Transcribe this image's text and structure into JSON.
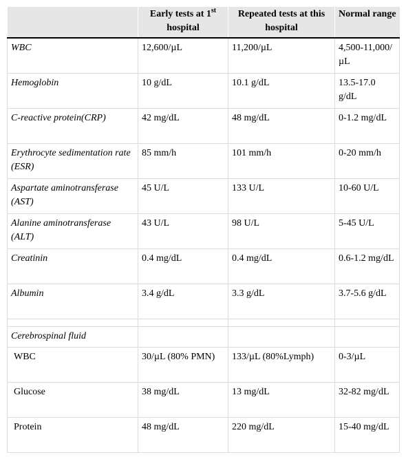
{
  "header": {
    "col1": "",
    "col2_text": "Early tests at 1",
    "col2_sup": "st",
    "col2_text2": "hospital",
    "col3": "Repeated tests at this hospital",
    "col4": "Normal range"
  },
  "blood_rows": [
    {
      "name": "WBC",
      "early": "12,600/µL",
      "repeated": "11,200/µL",
      "normal": "4,500-11,000/µL"
    },
    {
      "name": "Hemoglobin",
      "early": "10 g/dL",
      "repeated": "10.1 g/dL",
      "normal": "13.5-17.0 g/dL"
    },
    {
      "name": "C-reactive protein(CRP)",
      "early": "42 mg/dL",
      "repeated": "48 mg/dL",
      "normal": "0-1.2 mg/dL"
    },
    {
      "name": "Erythrocyte sedimentation rate (ESR)",
      "early": "85 mm/h",
      "repeated": "101 mm/h",
      "normal": "0-20 mm/h"
    },
    {
      "name": "Aspartate aminotransferase (AST)",
      "early": "45 U/L",
      "repeated": "133 U/L",
      "normal": "10-60 U/L"
    },
    {
      "name": "Alanine aminotransferase (ALT)",
      "early": "43 U/L",
      "repeated": "98 U/L",
      "normal": "5-45 U/L"
    },
    {
      "name": "Creatinin",
      "early": "0.4 mg/dL",
      "repeated": "0.4 mg/dL",
      "normal": "0.6-1.2 mg/dL"
    },
    {
      "name": "Albumin",
      "early": "3.4 g/dL",
      "repeated": "3.3 g/dL",
      "normal": "3.7-5.6 g/dL"
    }
  ],
  "csf_section_label": "Cerebrospinal fluid",
  "csf_rows": [
    {
      "name": "WBC",
      "early": "30/µL (80% PMN)",
      "repeated": "133/µL (80%Lymph)",
      "normal": "0-3/µL"
    },
    {
      "name": "Glucose",
      "early": "38 mg/dL",
      "repeated": "13 mg/dL",
      "normal": "32-82 mg/dL"
    },
    {
      "name": "Protein",
      "early": "48 mg/dL",
      "repeated": "220 mg/dL",
      "normal": "15-40 mg/dL"
    }
  ]
}
